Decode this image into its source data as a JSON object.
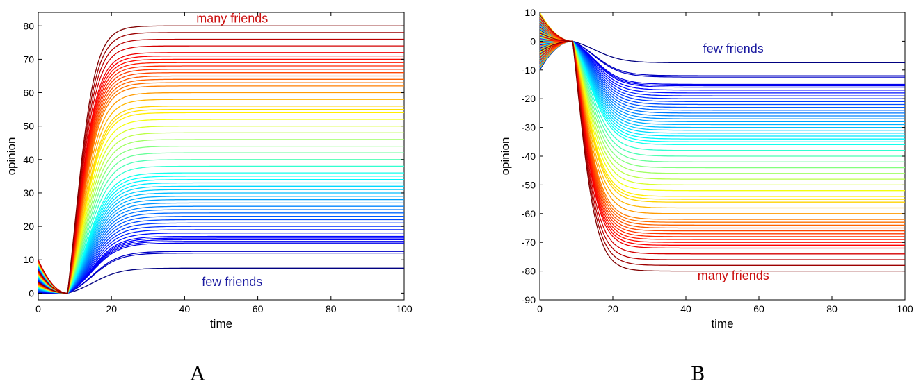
{
  "chart_data": [
    {
      "type": "line",
      "panel_label": "A",
      "xlabel": "time",
      "ylabel": "opinion",
      "xlim": [
        0,
        100
      ],
      "ylim": [
        -2,
        84
      ],
      "xticks": [
        0,
        20,
        40,
        60,
        80,
        100
      ],
      "yticks": [
        0,
        10,
        20,
        30,
        40,
        50,
        60,
        70,
        80
      ],
      "grid": false,
      "colormap": "jet",
      "initial_opinion_range": [
        0,
        10
      ],
      "switch_time": 8,
      "final_opinions": [
        7.5,
        12.0,
        12.5,
        15.0,
        15.5,
        16.0,
        16.5,
        17.0,
        18.0,
        19.0,
        20.0,
        21.0,
        22.0,
        23.0,
        24.0,
        25.0,
        26.0,
        27.0,
        28.0,
        29.0,
        30.0,
        31.0,
        32.0,
        33.0,
        34.0,
        35.0,
        36.0,
        38.0,
        40.0,
        42.0,
        44.0,
        46.0,
        48.0,
        50.0,
        52.0,
        54.0,
        55.0,
        56.0,
        58.0,
        60.0,
        62.0,
        63.0,
        64.0,
        65.0,
        66.0,
        67.0,
        68.0,
        69.0,
        70.0,
        71.0,
        72.0,
        74.0,
        76.0,
        78.0,
        80.0
      ],
      "annotations": [
        {
          "text": "many friends",
          "color": "#cc1111",
          "x": 53,
          "y": 81
        },
        {
          "text": "few friends",
          "color": "#1a1aa0",
          "x": 53,
          "y": 2.2
        }
      ]
    },
    {
      "type": "line",
      "panel_label": "B",
      "xlabel": "time",
      "ylabel": "opinion",
      "xlim": [
        0,
        100
      ],
      "ylim": [
        -90,
        10
      ],
      "xticks": [
        0,
        20,
        40,
        60,
        80,
        100
      ],
      "yticks": [
        -90,
        -80,
        -70,
        -60,
        -50,
        -40,
        -30,
        -20,
        -10,
        0,
        10
      ],
      "grid": false,
      "colormap": "jet",
      "initial_opinion_range": [
        -10,
        10
      ],
      "switch_time": 9,
      "final_opinions": [
        -7.5,
        -12.0,
        -12.5,
        -15.0,
        -15.5,
        -16.0,
        -17.0,
        -18.0,
        -19.0,
        -20.0,
        -21.0,
        -22.0,
        -23.0,
        -24.0,
        -25.0,
        -26.0,
        -27.0,
        -28.0,
        -29.0,
        -30.0,
        -31.0,
        -32.0,
        -33.0,
        -34.0,
        -35.0,
        -36.0,
        -38.0,
        -40.0,
        -42.0,
        -44.0,
        -46.0,
        -48.0,
        -50.0,
        -52.0,
        -54.0,
        -55.0,
        -56.0,
        -58.0,
        -60.0,
        -62.0,
        -63.0,
        -64.0,
        -65.0,
        -66.0,
        -67.0,
        -68.0,
        -69.0,
        -70.0,
        -71.0,
        -72.0,
        -74.0,
        -76.0,
        -78.0,
        -80.0
      ],
      "annotations": [
        {
          "text": "few friends",
          "color": "#1a1aa0",
          "x": 53,
          "y": -4
        },
        {
          "text": "many friends",
          "color": "#cc1111",
          "x": 53,
          "y": -83
        }
      ]
    }
  ]
}
